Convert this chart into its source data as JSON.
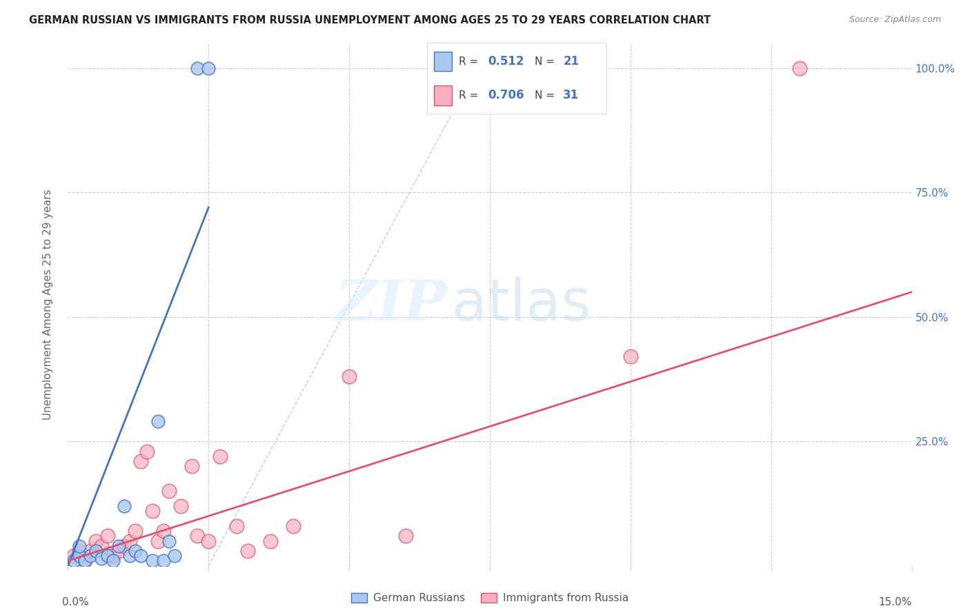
{
  "title": "GERMAN RUSSIAN VS IMMIGRANTS FROM RUSSIA UNEMPLOYMENT AMONG AGES 25 TO 29 YEARS CORRELATION CHART",
  "source": "Source: ZipAtlas.com",
  "ylabel": "Unemployment Among Ages 25 to 29 years",
  "xlim": [
    0.0,
    0.15
  ],
  "ylim": [
    0.0,
    1.05
  ],
  "blue_R": 0.512,
  "blue_N": 21,
  "pink_R": 0.706,
  "pink_N": 31,
  "blue_color": "#aac8ee",
  "pink_color": "#f4b0c0",
  "blue_line_color": "#4472c4",
  "pink_line_color": "#e05070",
  "legend_label_blue": "German Russians",
  "legend_label_pink": "Immigrants from Russia",
  "blue_scatter_x": [
    0.001,
    0.002,
    0.002,
    0.003,
    0.004,
    0.005,
    0.006,
    0.007,
    0.008,
    0.009,
    0.01,
    0.011,
    0.012,
    0.013,
    0.015,
    0.016,
    0.017,
    0.018,
    0.019,
    0.023,
    0.025
  ],
  "blue_scatter_y": [
    0.01,
    0.02,
    0.04,
    0.01,
    0.02,
    0.03,
    0.015,
    0.02,
    0.01,
    0.04,
    0.12,
    0.02,
    0.03,
    0.02,
    0.01,
    0.29,
    0.01,
    0.05,
    0.02,
    1.0,
    1.0
  ],
  "pink_scatter_x": [
    0.001,
    0.002,
    0.003,
    0.004,
    0.005,
    0.006,
    0.007,
    0.008,
    0.009,
    0.01,
    0.011,
    0.012,
    0.013,
    0.014,
    0.015,
    0.016,
    0.017,
    0.018,
    0.02,
    0.022,
    0.023,
    0.025,
    0.027,
    0.03,
    0.032,
    0.036,
    0.04,
    0.05,
    0.06,
    0.1,
    0.13
  ],
  "pink_scatter_y": [
    0.02,
    0.03,
    0.01,
    0.03,
    0.05,
    0.04,
    0.06,
    0.02,
    0.03,
    0.04,
    0.05,
    0.07,
    0.21,
    0.23,
    0.11,
    0.05,
    0.07,
    0.15,
    0.12,
    0.2,
    0.06,
    0.05,
    0.22,
    0.08,
    0.03,
    0.05,
    0.08,
    0.38,
    0.06,
    0.42,
    1.0
  ],
  "blue_regline_x": [
    0.0,
    0.025
  ],
  "blue_regline_y": [
    0.0,
    0.72
  ],
  "pink_regline_x": [
    0.0,
    0.15
  ],
  "pink_regline_y": [
    0.01,
    0.55
  ],
  "diag_line_x": [
    0.025,
    0.075
  ],
  "diag_line_y": [
    0.0,
    1.05
  ]
}
